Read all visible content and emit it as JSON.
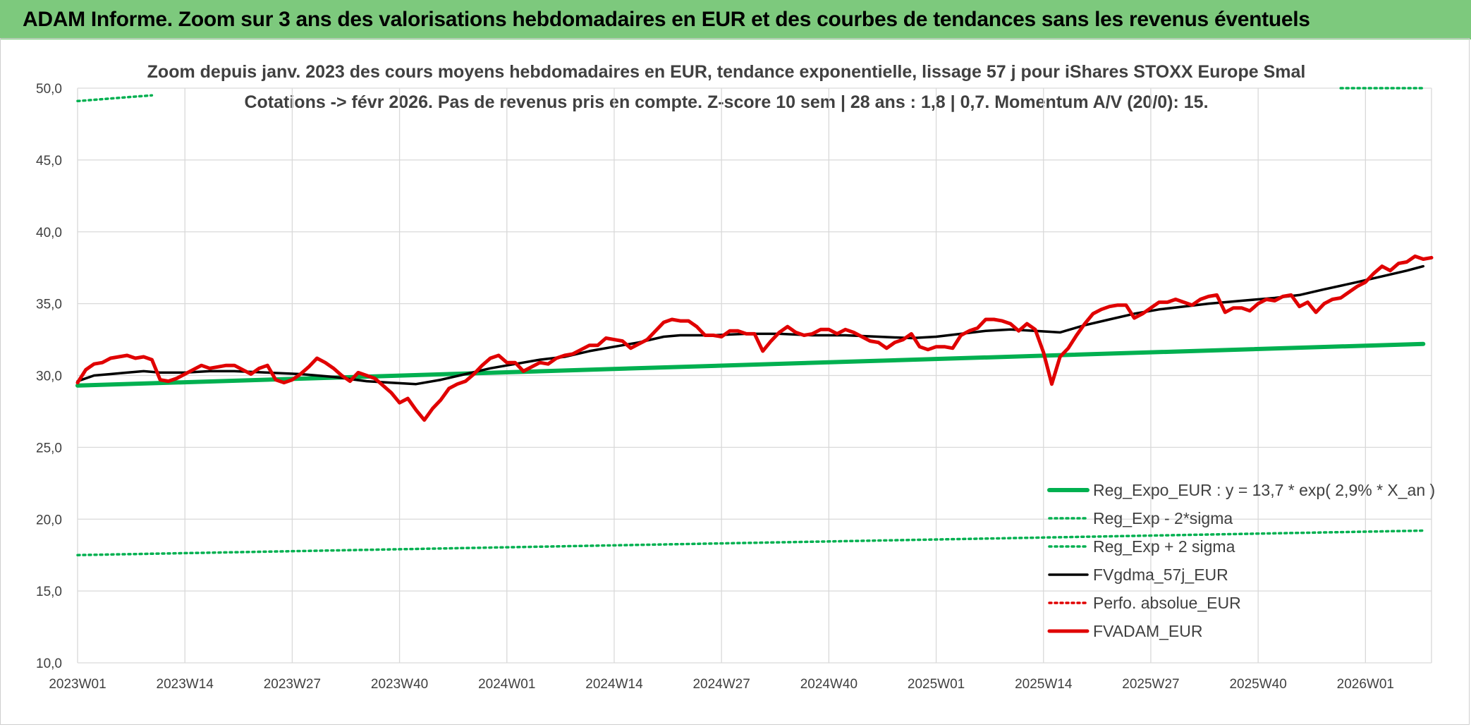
{
  "header": {
    "title": "ADAM Informe. Zoom sur 3 ans des valorisations hebdomadaires en EUR et des courbes de tendances sans les revenus éventuels"
  },
  "colors": {
    "banner": "#7dc97d",
    "reg_expo": "#00b050",
    "fvgdma": "#000000",
    "fvadam": "#e00000",
    "perfo": "#e00000",
    "grid": "#d9d9d9"
  },
  "chart_data": {
    "type": "line",
    "title_lines": [
      "Zoom depuis janv. 2023 des cours moyens hebdomadaires en EUR, tendance exponentielle, lissage 57 j pour iShares STOXX Europe Smal",
      "Cotations -> févr 2026. Pas de revenus pris en compte. Z-score 10 sem | 28 ans : 1,8 | 0,7. Momentum A/V (20/0): 15."
    ],
    "xlabel": "",
    "ylabel": "",
    "x_tick_labels": [
      "2023W01",
      "2023W14",
      "2023W27",
      "2023W40",
      "2024W01",
      "2024W14",
      "2024W27",
      "2024W40",
      "2025W01",
      "2025W14",
      "2025W27",
      "2025W40",
      "2026W01"
    ],
    "ylim": [
      10,
      50
    ],
    "y_tick_labels": [
      "10,0",
      "15,0",
      "20,0",
      "25,0",
      "30,0",
      "35,0",
      "40,0",
      "45,0",
      "50,0"
    ],
    "grid": true,
    "legend_position": "bottom-right",
    "series": [
      {
        "name": "Reg_Expo_EUR : y = 13,7 * exp( 2,9% *  X_an )",
        "style": "solid-thick",
        "color": "#00b050",
        "points": [
          [
            "2023W01",
            29.3
          ],
          [
            "2026W08",
            32.2
          ]
        ]
      },
      {
        "name": "Reg_Exp - 2*sigma",
        "style": "dotted",
        "color": "#00b050",
        "points": [
          [
            "2023W01",
            17.5
          ],
          [
            "2026W08",
            19.2
          ]
        ]
      },
      {
        "name": "Reg_Exp + 2 sigma",
        "style": "dotted",
        "color": "#00b050",
        "points": [
          [
            "2023W01",
            49.1
          ],
          [
            "2023W10",
            49.5
          ],
          [
            "2025W50",
            50.0
          ],
          [
            "2026W08",
            50.0
          ]
        ]
      },
      {
        "name": "FVgdma_57j_EUR",
        "style": "solid",
        "color": "#000000",
        "points": [
          [
            "2023W01",
            29.6
          ],
          [
            "2023W03",
            30.0
          ],
          [
            "2023W05",
            30.1
          ],
          [
            "2023W07",
            30.2
          ],
          [
            "2023W09",
            30.3
          ],
          [
            "2023W11",
            30.2
          ],
          [
            "2023W14",
            30.2
          ],
          [
            "2023W17",
            30.3
          ],
          [
            "2023W20",
            30.3
          ],
          [
            "2023W24",
            30.2
          ],
          [
            "2023W28",
            30.1
          ],
          [
            "2023W32",
            29.9
          ],
          [
            "2023W36",
            29.6
          ],
          [
            "2023W39",
            29.5
          ],
          [
            "2023W42",
            29.4
          ],
          [
            "2023W45",
            29.7
          ],
          [
            "2023W48",
            30.1
          ],
          [
            "2023W51",
            30.5
          ],
          [
            "2024W02",
            30.8
          ],
          [
            "2024W05",
            31.1
          ],
          [
            "2024W08",
            31.3
          ],
          [
            "2024W11",
            31.7
          ],
          [
            "2024W14",
            32.0
          ],
          [
            "2024W17",
            32.3
          ],
          [
            "2024W20",
            32.7
          ],
          [
            "2024W22",
            32.8
          ],
          [
            "2024W26",
            32.8
          ],
          [
            "2024W30",
            32.9
          ],
          [
            "2024W34",
            32.9
          ],
          [
            "2024W38",
            32.8
          ],
          [
            "2024W42",
            32.8
          ],
          [
            "2024W46",
            32.7
          ],
          [
            "2024W50",
            32.6
          ],
          [
            "2025W01",
            32.7
          ],
          [
            "2025W04",
            32.9
          ],
          [
            "2025W07",
            33.1
          ],
          [
            "2025W10",
            33.2
          ],
          [
            "2025W13",
            33.1
          ],
          [
            "2025W16",
            33.0
          ],
          [
            "2025W19",
            33.5
          ],
          [
            "2025W22",
            33.9
          ],
          [
            "2025W25",
            34.3
          ],
          [
            "2025W28",
            34.6
          ],
          [
            "2025W31",
            34.8
          ],
          [
            "2025W34",
            35.0
          ],
          [
            "2025W38",
            35.2
          ],
          [
            "2025W42",
            35.4
          ],
          [
            "2025W45",
            35.6
          ],
          [
            "2025W48",
            36.0
          ],
          [
            "2025W52",
            36.5
          ],
          [
            "2026W03",
            36.9
          ],
          [
            "2026W06",
            37.3
          ],
          [
            "2026W08",
            37.6
          ]
        ]
      },
      {
        "name": "Perfo. absolue_EUR",
        "style": "dotted",
        "color": "#e00000",
        "points": []
      },
      {
        "name": "FVADAM_EUR",
        "style": "solid-thick",
        "color": "#e00000",
        "points": [
          [
            "2023W01",
            29.5
          ],
          [
            "2023W02",
            30.4
          ],
          [
            "2023W03",
            30.8
          ],
          [
            "2023W04",
            30.9
          ],
          [
            "2023W05",
            31.2
          ],
          [
            "2023W06",
            31.3
          ],
          [
            "2023W07",
            31.4
          ],
          [
            "2023W08",
            31.2
          ],
          [
            "2023W09",
            31.3
          ],
          [
            "2023W10",
            31.1
          ],
          [
            "2023W11",
            29.7
          ],
          [
            "2023W12",
            29.6
          ],
          [
            "2023W13",
            29.8
          ],
          [
            "2023W14",
            30.1
          ],
          [
            "2023W15",
            30.4
          ],
          [
            "2023W16",
            30.7
          ],
          [
            "2023W17",
            30.5
          ],
          [
            "2023W18",
            30.6
          ],
          [
            "2023W19",
            30.7
          ],
          [
            "2023W20",
            30.7
          ],
          [
            "2023W21",
            30.4
          ],
          [
            "2023W22",
            30.1
          ],
          [
            "2023W23",
            30.5
          ],
          [
            "2023W24",
            30.7
          ],
          [
            "2023W25",
            29.7
          ],
          [
            "2023W26",
            29.5
          ],
          [
            "2023W27",
            29.7
          ],
          [
            "2023W28",
            30.1
          ],
          [
            "2023W29",
            30.6
          ],
          [
            "2023W30",
            31.2
          ],
          [
            "2023W31",
            30.9
          ],
          [
            "2023W32",
            30.5
          ],
          [
            "2023W33",
            30.0
          ],
          [
            "2023W34",
            29.6
          ],
          [
            "2023W35",
            30.2
          ],
          [
            "2023W36",
            30.0
          ],
          [
            "2023W37",
            29.8
          ],
          [
            "2023W38",
            29.3
          ],
          [
            "2023W39",
            28.8
          ],
          [
            "2023W40",
            28.1
          ],
          [
            "2023W41",
            28.4
          ],
          [
            "2023W42",
            27.6
          ],
          [
            "2023W43",
            26.9
          ],
          [
            "2023W44",
            27.7
          ],
          [
            "2023W45",
            28.3
          ],
          [
            "2023W46",
            29.1
          ],
          [
            "2023W47",
            29.4
          ],
          [
            "2023W48",
            29.6
          ],
          [
            "2023W49",
            30.1
          ],
          [
            "2023W50",
            30.7
          ],
          [
            "2023W51",
            31.2
          ],
          [
            "2023W52",
            31.4
          ],
          [
            "2024W01",
            30.9
          ],
          [
            "2024W02",
            30.9
          ],
          [
            "2024W03",
            30.3
          ],
          [
            "2024W04",
            30.6
          ],
          [
            "2024W05",
            30.9
          ],
          [
            "2024W06",
            30.8
          ],
          [
            "2024W07",
            31.2
          ],
          [
            "2024W08",
            31.4
          ],
          [
            "2024W09",
            31.5
          ],
          [
            "2024W10",
            31.8
          ],
          [
            "2024W11",
            32.1
          ],
          [
            "2024W12",
            32.1
          ],
          [
            "2024W13",
            32.6
          ],
          [
            "2024W14",
            32.5
          ],
          [
            "2024W15",
            32.4
          ],
          [
            "2024W16",
            31.9
          ],
          [
            "2024W17",
            32.2
          ],
          [
            "2024W18",
            32.5
          ],
          [
            "2024W19",
            33.1
          ],
          [
            "2024W20",
            33.7
          ],
          [
            "2024W21",
            33.9
          ],
          [
            "2024W22",
            33.8
          ],
          [
            "2024W23",
            33.8
          ],
          [
            "2024W24",
            33.4
          ],
          [
            "2024W25",
            32.8
          ],
          [
            "2024W26",
            32.8
          ],
          [
            "2024W27",
            32.7
          ],
          [
            "2024W28",
            33.1
          ],
          [
            "2024W29",
            33.1
          ],
          [
            "2024W30",
            32.9
          ],
          [
            "2024W31",
            32.9
          ],
          [
            "2024W32",
            31.7
          ],
          [
            "2024W33",
            32.4
          ],
          [
            "2024W34",
            33.0
          ],
          [
            "2024W35",
            33.4
          ],
          [
            "2024W36",
            33.0
          ],
          [
            "2024W37",
            32.8
          ],
          [
            "2024W38",
            32.9
          ],
          [
            "2024W39",
            33.2
          ],
          [
            "2024W40",
            33.2
          ],
          [
            "2024W41",
            32.9
          ],
          [
            "2024W42",
            33.2
          ],
          [
            "2024W43",
            33.0
          ],
          [
            "2024W44",
            32.7
          ],
          [
            "2024W45",
            32.4
          ],
          [
            "2024W46",
            32.3
          ],
          [
            "2024W47",
            31.9
          ],
          [
            "2024W48",
            32.3
          ],
          [
            "2024W49",
            32.5
          ],
          [
            "2024W50",
            32.9
          ],
          [
            "2024W51",
            32.0
          ],
          [
            "2024W52",
            31.8
          ],
          [
            "2025W01",
            32.0
          ],
          [
            "2025W02",
            32.0
          ],
          [
            "2025W03",
            31.9
          ],
          [
            "2025W04",
            32.8
          ],
          [
            "2025W05",
            33.1
          ],
          [
            "2025W06",
            33.3
          ],
          [
            "2025W07",
            33.9
          ],
          [
            "2025W08",
            33.9
          ],
          [
            "2025W09",
            33.8
          ],
          [
            "2025W10",
            33.6
          ],
          [
            "2025W11",
            33.1
          ],
          [
            "2025W12",
            33.6
          ],
          [
            "2025W13",
            33.2
          ],
          [
            "2025W14",
            31.6
          ],
          [
            "2025W15",
            29.4
          ],
          [
            "2025W16",
            31.3
          ],
          [
            "2025W17",
            31.9
          ],
          [
            "2025W18",
            32.8
          ],
          [
            "2025W19",
            33.6
          ],
          [
            "2025W20",
            34.3
          ],
          [
            "2025W21",
            34.6
          ],
          [
            "2025W22",
            34.8
          ],
          [
            "2025W23",
            34.9
          ],
          [
            "2025W24",
            34.9
          ],
          [
            "2025W25",
            34.0
          ],
          [
            "2025W26",
            34.3
          ],
          [
            "2025W27",
            34.7
          ],
          [
            "2025W28",
            35.1
          ],
          [
            "2025W29",
            35.1
          ],
          [
            "2025W30",
            35.3
          ],
          [
            "2025W31",
            35.1
          ],
          [
            "2025W32",
            34.9
          ],
          [
            "2025W33",
            35.3
          ],
          [
            "2025W34",
            35.5
          ],
          [
            "2025W35",
            35.6
          ],
          [
            "2025W36",
            34.4
          ],
          [
            "2025W37",
            34.7
          ],
          [
            "2025W38",
            34.7
          ],
          [
            "2025W39",
            34.5
          ],
          [
            "2025W40",
            35.0
          ],
          [
            "2025W41",
            35.3
          ],
          [
            "2025W42",
            35.2
          ],
          [
            "2025W43",
            35.5
          ],
          [
            "2025W44",
            35.6
          ],
          [
            "2025W45",
            34.8
          ],
          [
            "2025W46",
            35.1
          ],
          [
            "2025W47",
            34.4
          ],
          [
            "2025W48",
            35.0
          ],
          [
            "2025W49",
            35.3
          ],
          [
            "2025W50",
            35.4
          ],
          [
            "2025W51",
            35.8
          ],
          [
            "2025W52",
            36.2
          ],
          [
            "2026W01",
            36.5
          ],
          [
            "2026W02",
            37.1
          ],
          [
            "2026W03",
            37.6
          ],
          [
            "2026W04",
            37.3
          ],
          [
            "2026W05",
            37.8
          ],
          [
            "2026W06",
            37.9
          ],
          [
            "2026W07",
            38.3
          ],
          [
            "2026W08",
            38.1
          ],
          [
            "2026W09",
            38.2
          ]
        ]
      }
    ]
  }
}
